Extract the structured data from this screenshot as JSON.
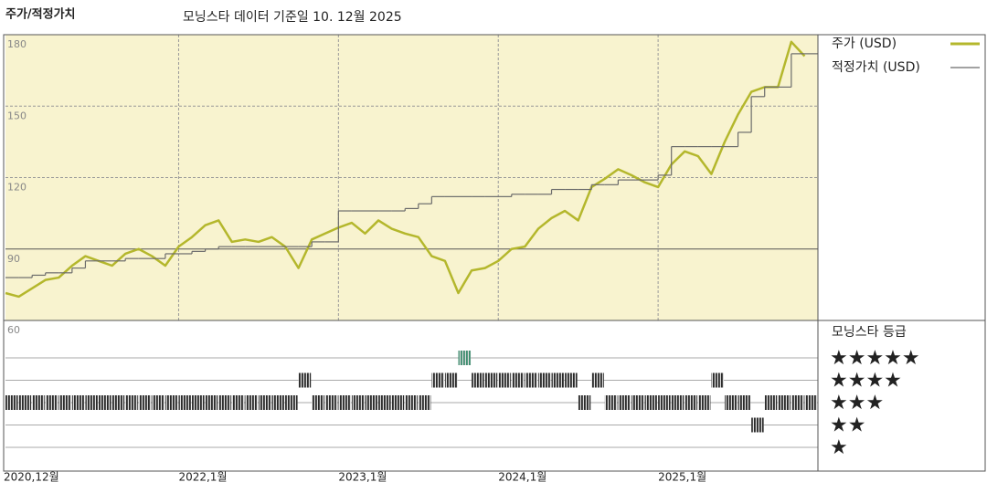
{
  "chart_data": {
    "type": "line",
    "y_label": "주가/적정가치",
    "title": "모닝스타 데이터 기준일 10. 12월 2025",
    "x": [
      "2020-12",
      "2021-01",
      "2021-02",
      "2021-03",
      "2021-04",
      "2021-05",
      "2021-06",
      "2021-07",
      "2021-08",
      "2021-09",
      "2021-10",
      "2021-11",
      "2021-12",
      "2022-01",
      "2022-02",
      "2022-03",
      "2022-04",
      "2022-05",
      "2022-06",
      "2022-07",
      "2022-08",
      "2022-09",
      "2022-10",
      "2022-11",
      "2022-12",
      "2023-01",
      "2023-02",
      "2023-03",
      "2023-04",
      "2023-05",
      "2023-06",
      "2023-07",
      "2023-08",
      "2023-09",
      "2023-10",
      "2023-11",
      "2023-12",
      "2024-01",
      "2024-02",
      "2024-03",
      "2024-04",
      "2024-05",
      "2024-06",
      "2024-07",
      "2024-08",
      "2024-09",
      "2024-10",
      "2024-11",
      "2024-12",
      "2025-01",
      "2025-02",
      "2025-03",
      "2025-04",
      "2025-05",
      "2025-06",
      "2025-07",
      "2025-08",
      "2025-09",
      "2025-10",
      "2025-11",
      "2025-12"
    ],
    "series": [
      {
        "name": "주가 (USD)",
        "color": "#b4b72c",
        "values": [
          71.5,
          70,
          73.5,
          77,
          78,
          83,
          87,
          85,
          83,
          88,
          90,
          87,
          83,
          91,
          95,
          100,
          102,
          93,
          94,
          93,
          95,
          91,
          82,
          94,
          96.5,
          99,
          101,
          96.5,
          102,
          98.5,
          96.5,
          95,
          87,
          85,
          71.5,
          81,
          82,
          85,
          90,
          91,
          98.5,
          103,
          106,
          102,
          116,
          119.5,
          123.5,
          121,
          118,
          116,
          125.5,
          131,
          129,
          121.5,
          135,
          146.5,
          156,
          158,
          158,
          177,
          171
        ]
      },
      {
        "name": "적정가치 (USD)",
        "color": "#6b6b6b",
        "step": true,
        "values": [
          78,
          78,
          79,
          80,
          80,
          82,
          85,
          85,
          85,
          86,
          86,
          86,
          88,
          88,
          89,
          90,
          91,
          91,
          91,
          91,
          91,
          91,
          91,
          93,
          93,
          106,
          106,
          106,
          106,
          106,
          107,
          109,
          112,
          112,
          112,
          112,
          112,
          112,
          113,
          113,
          113,
          115,
          115,
          115,
          117,
          117,
          119,
          119,
          119,
          121,
          133,
          133,
          133,
          133,
          133,
          139,
          154,
          158,
          158,
          172,
          172
        ]
      }
    ],
    "xlim": [
      "2020-12",
      "2026-01"
    ],
    "xticks": [
      {
        "value": "2020-12",
        "label": "2020,12월"
      },
      {
        "value": "2022-01",
        "label": "2022,1월"
      },
      {
        "value": "2023-01",
        "label": "2023,1월"
      },
      {
        "value": "2024-01",
        "label": "2024,1월"
      },
      {
        "value": "2025-01",
        "label": "2025,1월"
      }
    ],
    "ylim": [
      60,
      180
    ],
    "yticks": [
      60,
      90,
      120,
      150,
      180
    ],
    "grid": true,
    "ratings": {
      "title": "모닝스타 등급",
      "levels": [
        {
          "value": 5,
          "label": "★★★★★",
          "color": "#3c8c6e"
        },
        {
          "value": 4,
          "label": "★★★★",
          "color": "#2a2a2a"
        },
        {
          "value": 3,
          "label": "★★★",
          "color": "#2a2a2a"
        },
        {
          "value": 2,
          "label": "★★",
          "color": "#2a2a2a"
        },
        {
          "value": 1,
          "label": "★",
          "color": "#2a2a2a"
        }
      ],
      "values": [
        3,
        3,
        3,
        3,
        3,
        3,
        3,
        3,
        3,
        3,
        3,
        3,
        3,
        3,
        3,
        3,
        3,
        3,
        3,
        3,
        3,
        3,
        4,
        3,
        3,
        3,
        3,
        3,
        3,
        3,
        3,
        3,
        4,
        4,
        5,
        4,
        4,
        4,
        4,
        4,
        4,
        4,
        4,
        3,
        4,
        3,
        3,
        3,
        3,
        3,
        3,
        3,
        3,
        4,
        3,
        3,
        2,
        3,
        3,
        3,
        3
      ]
    }
  }
}
